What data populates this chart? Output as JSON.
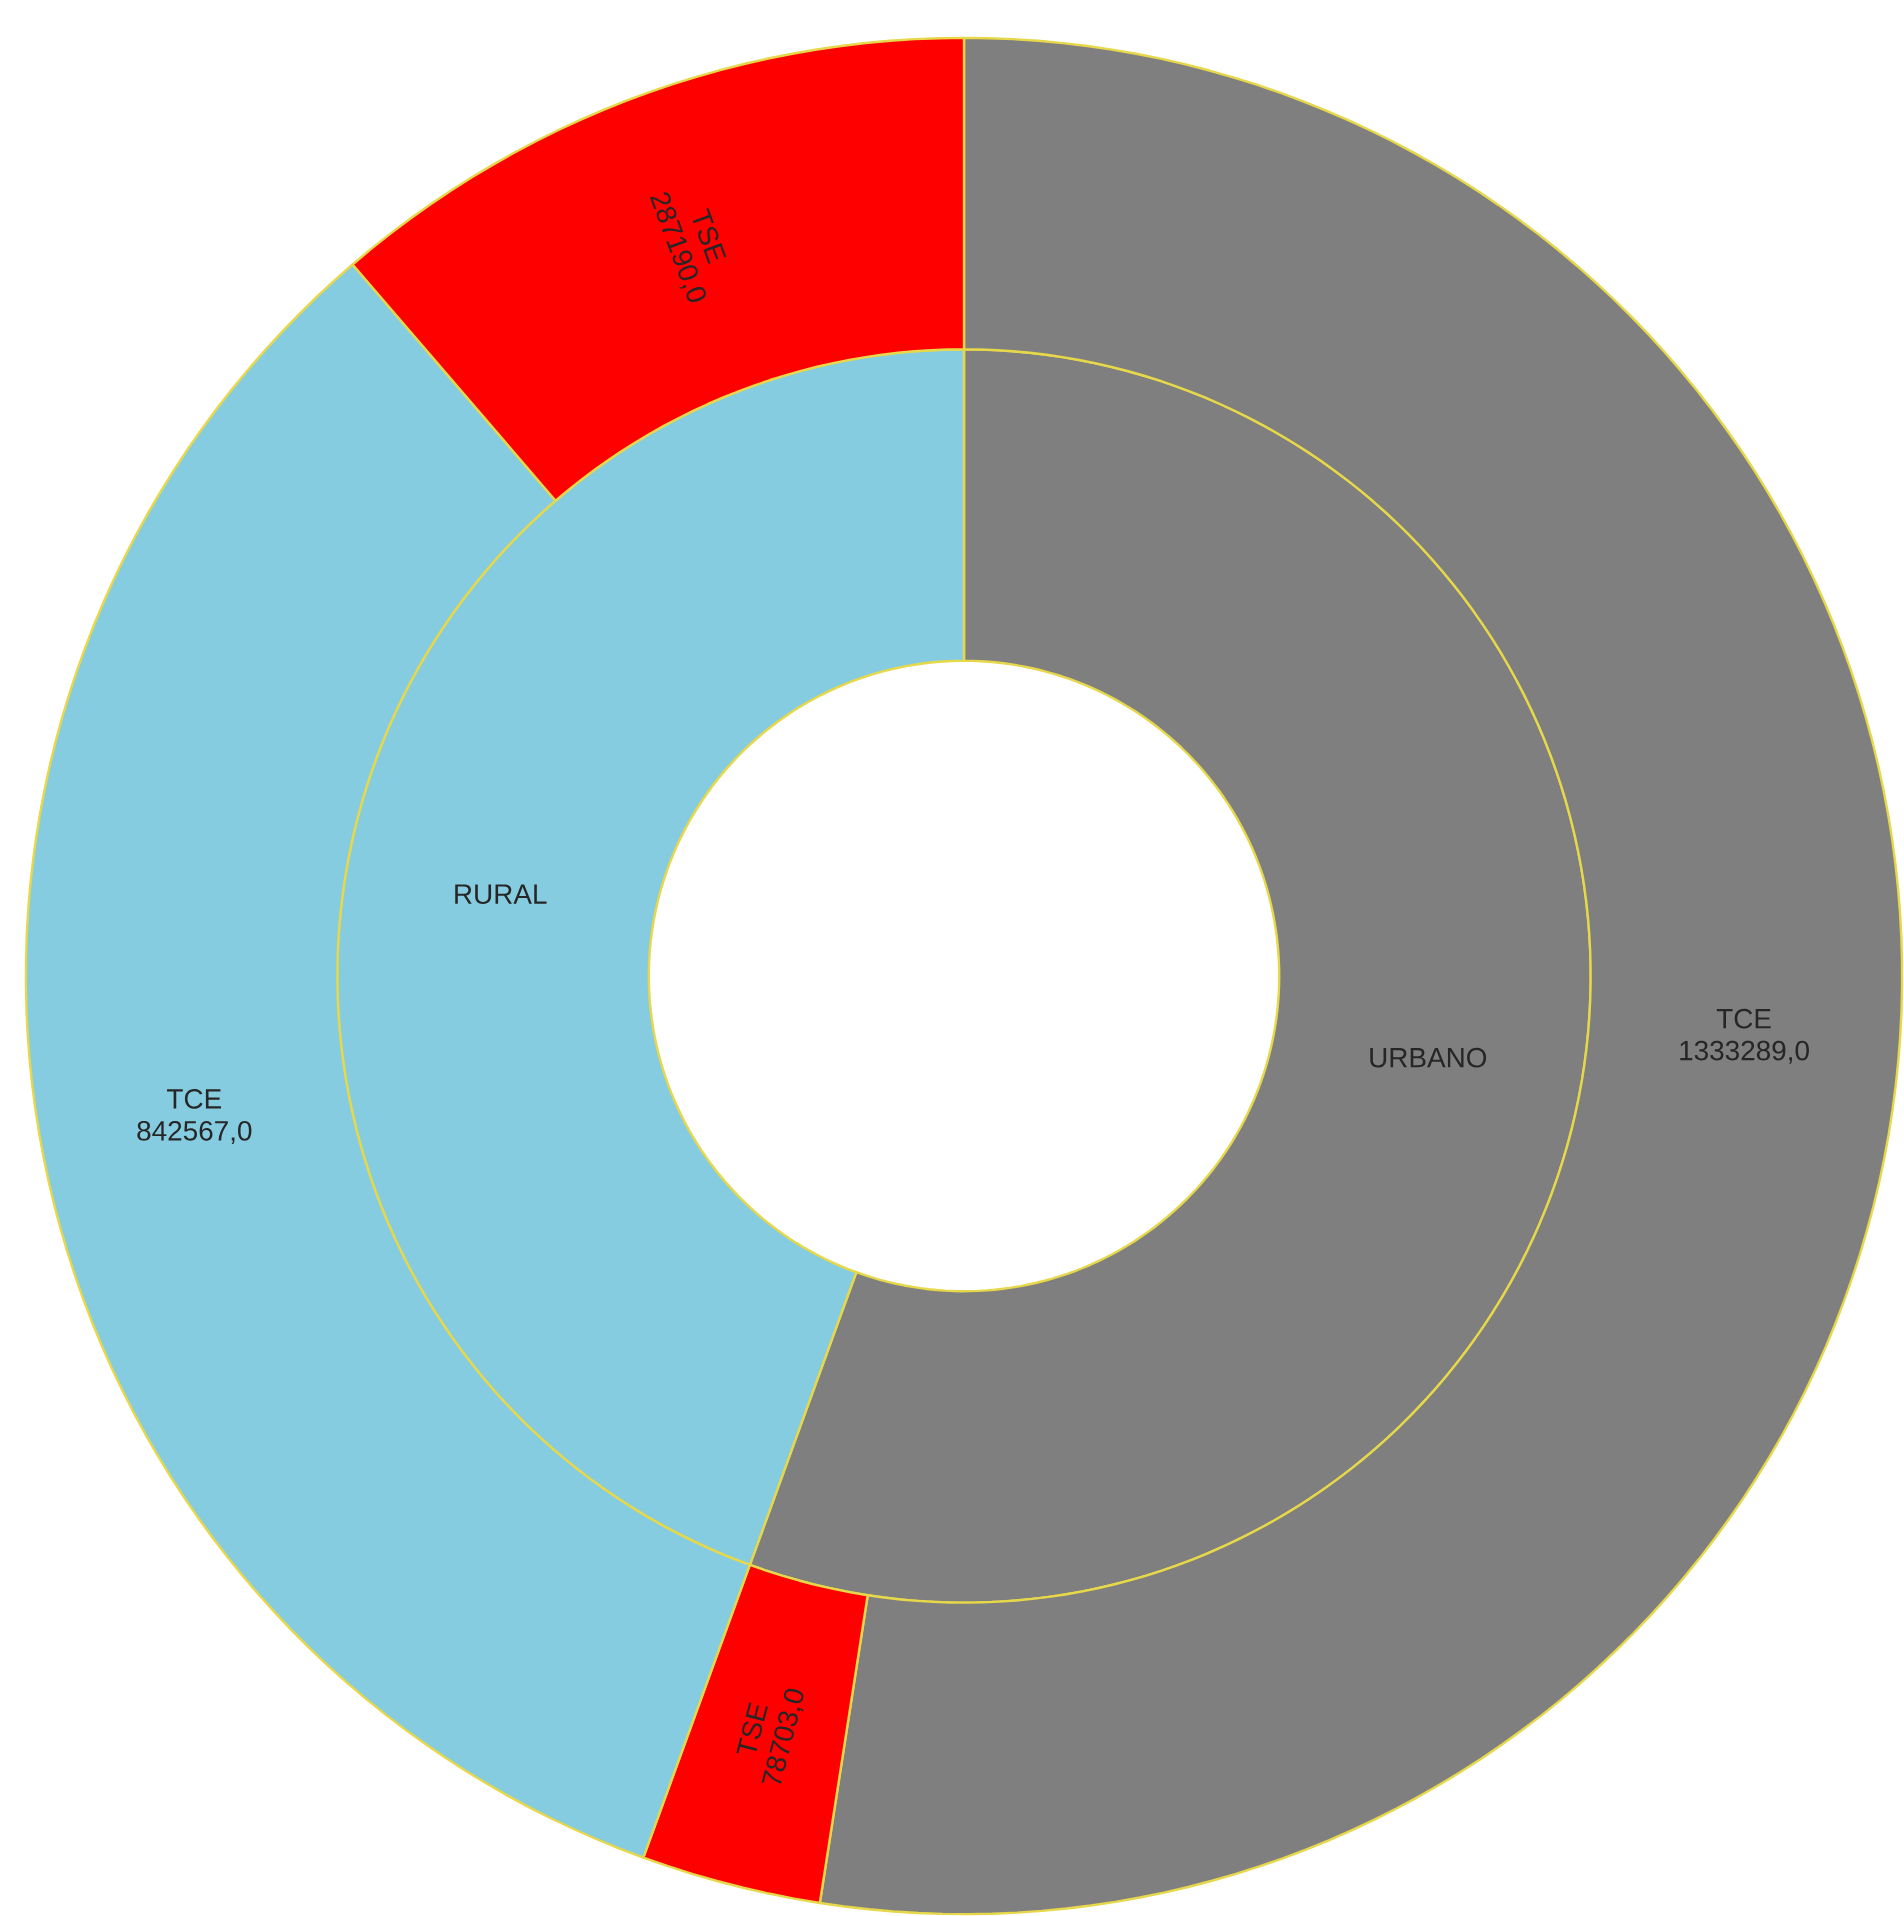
{
  "chart_data": [
    {
      "type": "donut",
      "categories": [
        "URBANO",
        "RURAL"
      ],
      "values": [
        55.55,
        44.45
      ],
      "colors": [
        "#7f7f7f",
        "#86cce0"
      ]
    },
    {
      "type": "donut",
      "categories": [
        "TCE",
        "TSE",
        "TCE",
        "TSE"
      ],
      "values": [
        1333289,
        78703,
        842567,
        287190
      ],
      "value_labels": [
        "1333289,0",
        "78703,0",
        "842567,0",
        "287190,0"
      ],
      "colors": [
        "#7f7f7f",
        "#ff0000",
        "#86cce0",
        "#ff0000"
      ]
    }
  ]
}
